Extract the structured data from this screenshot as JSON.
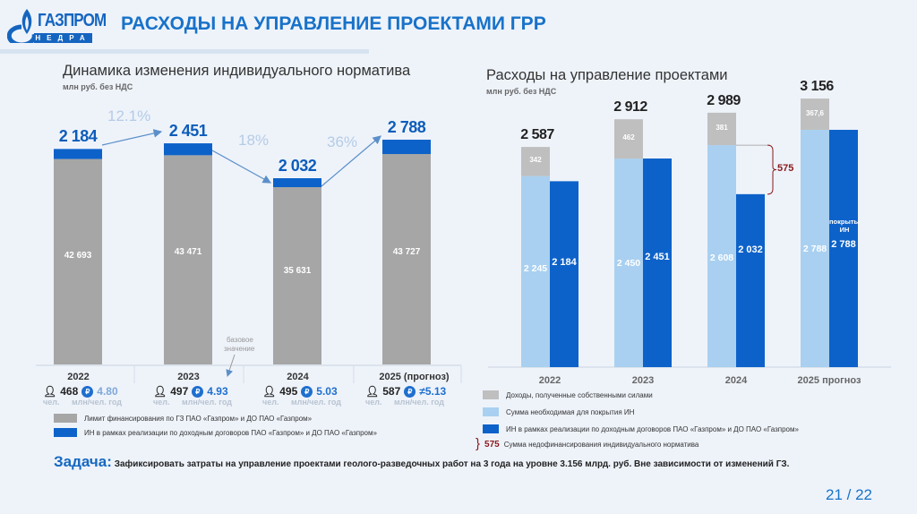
{
  "header": {
    "logo_text": "ГАЗПРОМ",
    "logo_subtext": "НЕДРА",
    "title": "РАСХОДЫ НА УПРАВЛЕНИЕ ПРОЕКТАМИ ГРР"
  },
  "colors": {
    "gray": "#a6a6a6",
    "blue": "#0d62c9",
    "light_blue": "#a9d0f0",
    "dark_red": "#8b1a1a",
    "title_blue": "#1872c9"
  },
  "chart_data": [
    {
      "type": "bar",
      "title": "Динамика изменения индивидуального норматива",
      "subtitle": "млн руб. без НДС",
      "categories": [
        "2022",
        "2023",
        "2024",
        "2025 (прогноз)"
      ],
      "series": [
        {
          "name": "Лимит финансирования по ГЗ ПАО «Газпром» и ДО ПАО «Газпром»",
          "values": [
            42693,
            43471,
            35631,
            43727
          ]
        },
        {
          "name": "ИН в рамках реализации по доходным договоров ПАО «Газпром» и ДО ПАО «Газпром»",
          "values": [
            2184,
            2451,
            2032,
            2788
          ]
        }
      ],
      "top_labels": [
        "2 184",
        "2 451",
        "2 032",
        "2 788"
      ],
      "inbar_labels": [
        "42 693",
        "43 471",
        "35 631",
        "43 727"
      ],
      "changes": [
        "12.1%",
        "18%",
        "36%"
      ],
      "annotation": "базовое значение",
      "stats": [
        {
          "year": "2022",
          "people": "468",
          "per_person": "4.80",
          "people_unit": "чел.",
          "rate_unit": "млн/чел. год"
        },
        {
          "year": "2023",
          "people": "497",
          "per_person": "4.93",
          "people_unit": "чел.",
          "rate_unit": "млн/чел. год"
        },
        {
          "year": "2024",
          "people": "495",
          "per_person": "5.03",
          "people_unit": "чел.",
          "rate_unit": "млн/чел. год"
        },
        {
          "year": "2025 (прогноз)",
          "people": "587",
          "per_person": "≠5.13",
          "people_unit": "чел.",
          "rate_unit": "млн/чел. год"
        }
      ],
      "legend": [
        "Лимит финансирования по ГЗ ПАО «Газпром» и ДО ПАО «Газпром»",
        "ИН в рамках реализации по доходным договоров ПАО «Газпром» и ДО ПАО «Газпром»"
      ]
    },
    {
      "type": "bar",
      "title": "Расходы на управление проектами",
      "subtitle": "млн руб. без НДС",
      "categories": [
        "2022",
        "2023",
        "2024",
        "2025 прогноз"
      ],
      "series": [
        {
          "name": "Доходы, полученные собственными силами",
          "values": [
            342,
            462,
            381,
            367.6
          ],
          "labels": [
            "342",
            "462",
            "381",
            "367,6"
          ]
        },
        {
          "name": "Сумма необходимая для покрытия ИН",
          "values": [
            2245,
            2450,
            2608,
            2788
          ],
          "labels": [
            "2 245",
            "2 450",
            "2 608",
            "2 788"
          ]
        },
        {
          "name": "ИН в рамках реализации по доходным договоров ПАО «Газпром» и ДО ПАО «Газпром»",
          "values": [
            2184,
            2451,
            2032,
            2788
          ],
          "labels": [
            "2 184",
            "2 451",
            "2 032",
            "2 788"
          ]
        }
      ],
      "totals": [
        "2 587",
        "2 912",
        "2 989",
        "3 156"
      ],
      "total_values": [
        2587,
        2912,
        2989,
        3156
      ],
      "gap": {
        "category": "2024",
        "value": 575,
        "label": "575"
      },
      "covered_note": "покрыты ИН",
      "legend": [
        "Доходы, полученные собственными силами",
        "Сумма необходимая для покрытия ИН",
        "ИН в рамках реализации по доходным договоров ПАО «Газпром» и ДО ПАО «Газпром»"
      ],
      "gap_legend": {
        "value": "575",
        "text": "Сумма недофинансирования индивидуального норматива"
      }
    }
  ],
  "task": {
    "heading": "Задача:",
    "text_1": "Зафиксировать затраты на управление проектами геолого-разведочных работ на ",
    "bold_1": "3 года",
    "text_2": " на уровне ",
    "bold_2": "3.156 млрд. руб.",
    "text_3": " Вне зависимости от изменений ГЗ."
  },
  "page": "21 / 22"
}
